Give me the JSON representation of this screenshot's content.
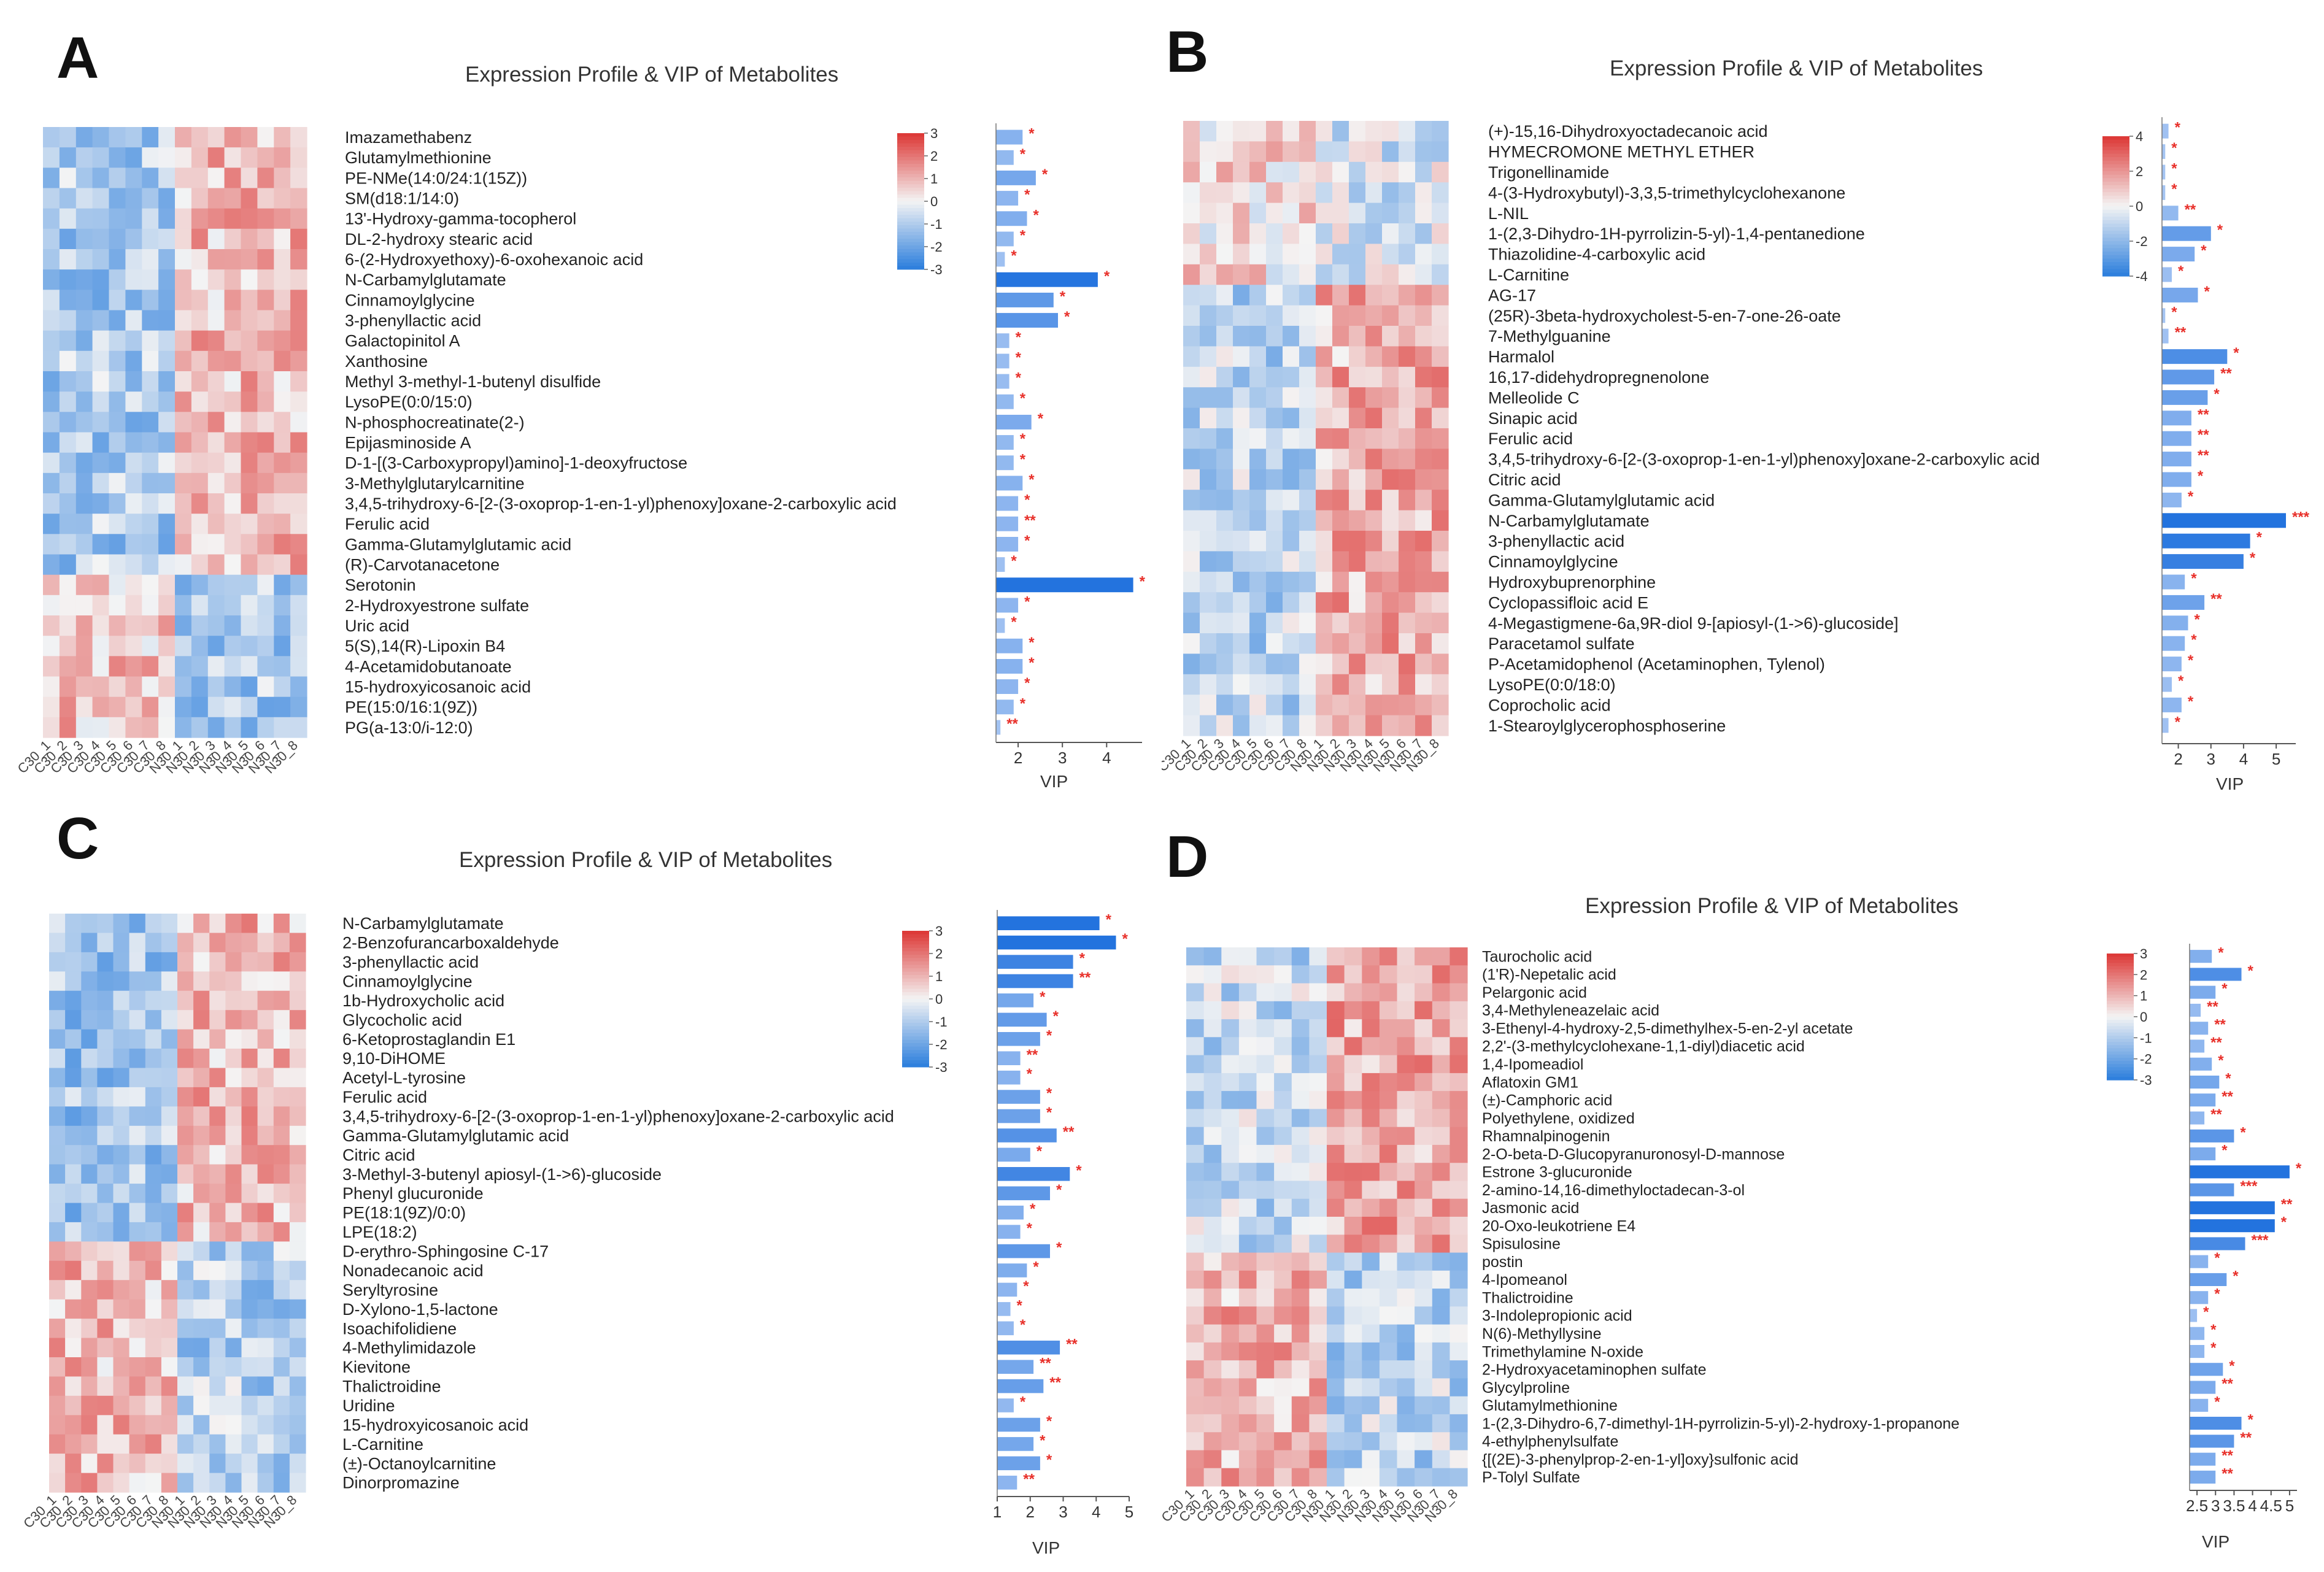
{
  "colors": {
    "low": "#2f80dd",
    "mid": "#f4f4f4",
    "high": "#dd3a38",
    "bar_light": "#a9c7f3",
    "bar_dark": "#2373de",
    "star": "#e8302a"
  },
  "chart_data": [
    {
      "type": "heatmap",
      "panel_label": "A",
      "title": "Expression Profile & VIP of Metabolites",
      "samples": [
        "C30_1",
        "C30_2",
        "C30_3",
        "C30_4",
        "C30_5",
        "C30_6",
        "C30_7",
        "C30_8",
        "N30_1",
        "N30_2",
        "N30_3",
        "N30_4",
        "N30_5",
        "N30_6",
        "N30_7",
        "N30_8"
      ],
      "colorbar_ticks": [
        "3",
        "2",
        "1",
        "0",
        "-1",
        "-2",
        "-3"
      ],
      "colorbar_range": [
        -3,
        3
      ],
      "vip_xlabel": "VIP",
      "vip_ticks": [
        "2",
        "3",
        "4"
      ],
      "vip_range": [
        1.5,
        4.8
      ],
      "metabolites": [
        {
          "name": "Imazamethabenz",
          "vip": 2.1,
          "sig": "*"
        },
        {
          "name": "Glutamylmethionine",
          "vip": 1.9,
          "sig": "*"
        },
        {
          "name": "PE-NMe(14:0/24:1(15Z))",
          "vip": 2.4,
          "sig": "*"
        },
        {
          "name": "SM(d18:1/14:0)",
          "vip": 2.0,
          "sig": "*"
        },
        {
          "name": "13'-Hydroxy-gamma-tocopherol",
          "vip": 2.2,
          "sig": "*"
        },
        {
          "name": "DL-2-hydroxy stearic acid",
          "vip": 1.9,
          "sig": "*"
        },
        {
          "name": "6-(2-Hydroxyethoxy)-6-oxohexanoic acid",
          "vip": 1.7,
          "sig": "*"
        },
        {
          "name": "N-Carbamylglutamate",
          "vip": 3.8,
          "sig": "*"
        },
        {
          "name": "Cinnamoylglycine",
          "vip": 2.8,
          "sig": "*"
        },
        {
          "name": "3-phenyllactic acid",
          "vip": 2.9,
          "sig": "*"
        },
        {
          "name": "Galactopinitol A",
          "vip": 1.8,
          "sig": "*"
        },
        {
          "name": "Xanthosine",
          "vip": 1.8,
          "sig": "*"
        },
        {
          "name": "Methyl 3-methyl-1-butenyl disulfide",
          "vip": 1.8,
          "sig": "*"
        },
        {
          "name": "LysoPE(0:0/15:0)",
          "vip": 1.9,
          "sig": "*"
        },
        {
          "name": "N-phosphocreatinate(2-)",
          "vip": 2.3,
          "sig": "*"
        },
        {
          "name": "Epijasminoside A",
          "vip": 1.9,
          "sig": "*"
        },
        {
          "name": "D-1-[(3-Carboxypropyl)amino]-1-deoxyfructose",
          "vip": 1.9,
          "sig": "*"
        },
        {
          "name": "3-Methylglutarylcarnitine",
          "vip": 2.1,
          "sig": "*"
        },
        {
          "name": "3,4,5-trihydroxy-6-[2-(3-oxoprop-1-en-1-yl)phenoxy]oxane-2-carboxylic acid",
          "vip": 2.0,
          "sig": "*"
        },
        {
          "name": "Ferulic acid",
          "vip": 2.0,
          "sig": "**"
        },
        {
          "name": "Gamma-Glutamylglutamic acid",
          "vip": 2.0,
          "sig": "*"
        },
        {
          "name": "(R)-Carvotanacetone",
          "vip": 1.7,
          "sig": "*"
        },
        {
          "name": "Serotonin",
          "vip": 4.6,
          "sig": "*"
        },
        {
          "name": "2-Hydroxyestrone sulfate",
          "vip": 2.0,
          "sig": "*"
        },
        {
          "name": "Uric acid",
          "vip": 1.7,
          "sig": "*"
        },
        {
          "name": "5(S),14(R)-Lipoxin B4",
          "vip": 2.1,
          "sig": "*"
        },
        {
          "name": "4-Acetamidobutanoate",
          "vip": 2.1,
          "sig": "*"
        },
        {
          "name": "15-hydroxyicosanoic acid",
          "vip": 2.0,
          "sig": "*"
        },
        {
          "name": "PE(15:0/16:1(9Z))",
          "vip": 1.9,
          "sig": "*"
        },
        {
          "name": "PG(a-13:0/i-12:0)",
          "vip": 1.6,
          "sig": "**"
        }
      ]
    },
    {
      "type": "heatmap",
      "panel_label": "B",
      "title": "Expression Profile & VIP of Metabolites",
      "samples": [
        "C30_1",
        "C30_2",
        "C30_3",
        "C30_4",
        "C30_5",
        "C30_6",
        "C30_7",
        "C30_8",
        "N30_1",
        "N30_2",
        "N30_3",
        "N30_4",
        "N30_5",
        "N30_6",
        "N30_7",
        "N30_8"
      ],
      "colorbar_ticks": [
        "4",
        "2",
        "0",
        "-2",
        "-4"
      ],
      "colorbar_range": [
        -4,
        4
      ],
      "vip_xlabel": "VIP",
      "vip_ticks": [
        "2",
        "3",
        "4",
        "5"
      ],
      "vip_range": [
        1.5,
        5.6
      ],
      "metabolites": [
        {
          "name": "(+)-15,16-Dihydroxyoctadecanoic acid",
          "vip": 1.7,
          "sig": "*"
        },
        {
          "name": "HYMECROMONE METHYL ETHER",
          "vip": 1.6,
          "sig": "*"
        },
        {
          "name": "Trigonellinamide",
          "vip": 1.6,
          "sig": "*"
        },
        {
          "name": "4-(3-Hydroxybutyl)-3,3,5-trimethylcyclohexanone",
          "vip": 1.6,
          "sig": "*"
        },
        {
          "name": "L-NIL",
          "vip": 2.0,
          "sig": "**"
        },
        {
          "name": "1-(2,3-Dihydro-1H-pyrrolizin-5-yl)-1,4-pentanedione",
          "vip": 3.0,
          "sig": "*"
        },
        {
          "name": "Thiazolidine-4-carboxylic acid",
          "vip": 2.5,
          "sig": "*"
        },
        {
          "name": "L-Carnitine",
          "vip": 1.8,
          "sig": "*"
        },
        {
          "name": "AG-17",
          "vip": 2.6,
          "sig": "*"
        },
        {
          "name": "(25R)-3beta-hydroxycholest-5-en-7-one-26-oate",
          "vip": 1.6,
          "sig": "*"
        },
        {
          "name": "7-Methylguanine",
          "vip": 1.7,
          "sig": "**"
        },
        {
          "name": "Harmalol",
          "vip": 3.5,
          "sig": "*"
        },
        {
          "name": "16,17-didehydropregnenolone",
          "vip": 3.1,
          "sig": "**"
        },
        {
          "name": "Melleolide C",
          "vip": 2.9,
          "sig": "*"
        },
        {
          "name": "Sinapic acid",
          "vip": 2.4,
          "sig": "**"
        },
        {
          "name": "Ferulic acid",
          "vip": 2.4,
          "sig": "**"
        },
        {
          "name": "3,4,5-trihydroxy-6-[2-(3-oxoprop-1-en-1-yl)phenoxy]oxane-2-carboxylic acid",
          "vip": 2.4,
          "sig": "**"
        },
        {
          "name": "Citric acid",
          "vip": 2.4,
          "sig": "*"
        },
        {
          "name": "Gamma-Glutamylglutamic acid",
          "vip": 2.1,
          "sig": "*"
        },
        {
          "name": "N-Carbamylglutamate",
          "vip": 5.3,
          "sig": "***"
        },
        {
          "name": "3-phenyllactic acid",
          "vip": 4.2,
          "sig": "*"
        },
        {
          "name": "Cinnamoylglycine",
          "vip": 4.0,
          "sig": "*"
        },
        {
          "name": "Hydroxybuprenorphine",
          "vip": 2.2,
          "sig": "*"
        },
        {
          "name": "Cyclopassifloic acid E",
          "vip": 2.8,
          "sig": "**"
        },
        {
          "name": "4-Megastigmene-6a,9R-diol 9-[apiosyl-(1->6)-glucoside]",
          "vip": 2.3,
          "sig": "*"
        },
        {
          "name": "Paracetamol sulfate",
          "vip": 2.2,
          "sig": "*"
        },
        {
          "name": "P-Acetamidophenol (Acetaminophen, Tylenol)",
          "vip": 2.1,
          "sig": "*"
        },
        {
          "name": "LysoPE(0:0/18:0)",
          "vip": 1.8,
          "sig": "*"
        },
        {
          "name": "Coprocholic acid",
          "vip": 2.1,
          "sig": "*"
        },
        {
          "name": "1-Stearoylglycerophosphoserine",
          "vip": 1.7,
          "sig": "*"
        }
      ]
    },
    {
      "type": "heatmap",
      "panel_label": "C",
      "title": "Expression Profile & VIP of Metabolites",
      "samples": [
        "C30_1",
        "C30_2",
        "C30_3",
        "C30_4",
        "C30_5",
        "C30_6",
        "C30_7",
        "C30_8",
        "N30_1",
        "N30_2",
        "N30_3",
        "N30_4",
        "N30_5",
        "N30_6",
        "N30_7",
        "N30_8"
      ],
      "colorbar_ticks": [
        "3",
        "2",
        "1",
        "0",
        "-1",
        "-2",
        "-3"
      ],
      "colorbar_range": [
        -3,
        3
      ],
      "vip_xlabel": "VIP",
      "vip_ticks": [
        "1",
        "2",
        "3",
        "4",
        "5"
      ],
      "vip_range": [
        1,
        5
      ],
      "metabolites": [
        {
          "name": "N-Carbamylglutamate",
          "vip": 4.1,
          "sig": "*"
        },
        {
          "name": "2-Benzofurancarboxaldehyde",
          "vip": 4.6,
          "sig": "*"
        },
        {
          "name": "3-phenyllactic acid",
          "vip": 3.3,
          "sig": "*"
        },
        {
          "name": "Cinnamoylglycine",
          "vip": 3.3,
          "sig": "**"
        },
        {
          "name": "1b-Hydroxycholic acid",
          "vip": 2.1,
          "sig": "*"
        },
        {
          "name": "Glycocholic acid",
          "vip": 2.5,
          "sig": "*"
        },
        {
          "name": "6-Ketoprostaglandin E1",
          "vip": 2.3,
          "sig": "*"
        },
        {
          "name": "9,10-DiHOME",
          "vip": 1.7,
          "sig": "**"
        },
        {
          "name": "Acetyl-L-tyrosine",
          "vip": 1.7,
          "sig": "*"
        },
        {
          "name": "Ferulic acid",
          "vip": 2.3,
          "sig": "*"
        },
        {
          "name": "3,4,5-trihydroxy-6-[2-(3-oxoprop-1-en-1-yl)phenoxy]oxane-2-carboxylic acid",
          "vip": 2.3,
          "sig": "*"
        },
        {
          "name": "Gamma-Glutamylglutamic acid",
          "vip": 2.8,
          "sig": "**"
        },
        {
          "name": "Citric acid",
          "vip": 2.0,
          "sig": "*"
        },
        {
          "name": "3-Methyl-3-butenyl apiosyl-(1->6)-glucoside",
          "vip": 3.2,
          "sig": "*"
        },
        {
          "name": "Phenyl glucuronide",
          "vip": 2.6,
          "sig": "*"
        },
        {
          "name": "PE(18:1(9Z)/0:0)",
          "vip": 1.8,
          "sig": "*"
        },
        {
          "name": "LPE(18:2)",
          "vip": 1.7,
          "sig": "*"
        },
        {
          "name": "D-erythro-Sphingosine C-17",
          "vip": 2.6,
          "sig": "*"
        },
        {
          "name": "Nonadecanoic acid",
          "vip": 1.9,
          "sig": "*"
        },
        {
          "name": "Seryltyrosine",
          "vip": 1.6,
          "sig": "*"
        },
        {
          "name": "D-Xylono-1,5-lactone",
          "vip": 1.4,
          "sig": "*"
        },
        {
          "name": "Isoachifolidiene",
          "vip": 1.5,
          "sig": "*"
        },
        {
          "name": "4-Methylimidazole",
          "vip": 2.9,
          "sig": "**"
        },
        {
          "name": "Kievitone",
          "vip": 2.1,
          "sig": "**"
        },
        {
          "name": "Thalictroidine",
          "vip": 2.4,
          "sig": "**"
        },
        {
          "name": "Uridine",
          "vip": 1.5,
          "sig": "*"
        },
        {
          "name": "15-hydroxyicosanoic acid",
          "vip": 2.3,
          "sig": "*"
        },
        {
          "name": "L-Carnitine",
          "vip": 2.1,
          "sig": "*"
        },
        {
          "name": "(±)-Octanoylcarnitine",
          "vip": 2.3,
          "sig": "*"
        },
        {
          "name": "Dinorpromazine",
          "vip": 1.6,
          "sig": "**"
        }
      ]
    },
    {
      "type": "heatmap",
      "panel_label": "D",
      "title": "Expression Profile & VIP of Metabolites",
      "samples": [
        "C30_1",
        "C30_2",
        "C30_3",
        "C30_4",
        "C30_5",
        "C30_6",
        "C30_7",
        "C30_8",
        "N30_1",
        "N30_2",
        "N30_3",
        "N30_4",
        "N30_5",
        "N30_6",
        "N30_7",
        "N30_8"
      ],
      "colorbar_ticks": [
        "3",
        "2",
        "1",
        "0",
        "-1",
        "-2",
        "-3"
      ],
      "colorbar_range": [
        -3,
        3
      ],
      "vip_xlabel": "VIP",
      "vip_ticks": [
        "2.5",
        "3",
        "3.5",
        "4",
        "4.5",
        "5"
      ],
      "vip_range": [
        2.3,
        5.2
      ],
      "metabolites": [
        {
          "name": "Taurocholic acid",
          "vip": 2.9,
          "sig": "*"
        },
        {
          "name": "(1'R)-Nepetalic acid",
          "vip": 3.7,
          "sig": "*"
        },
        {
          "name": "Pelargonic acid",
          "vip": 3.0,
          "sig": "*"
        },
        {
          "name": "3,4-Methyleneazelaic acid",
          "vip": 2.6,
          "sig": "**"
        },
        {
          "name": "3-Ethenyl-4-hydroxy-2,5-dimethylhex-5-en-2-yl acetate",
          "vip": 2.8,
          "sig": "**"
        },
        {
          "name": "2,2'-(3-methylcyclohexane-1,1-diyl)diacetic acid",
          "vip": 2.7,
          "sig": "**"
        },
        {
          "name": "1,4-Ipomeadiol",
          "vip": 2.9,
          "sig": "*"
        },
        {
          "name": "Aflatoxin GM1",
          "vip": 3.1,
          "sig": "*"
        },
        {
          "name": "(±)-Camphoric acid",
          "vip": 3.0,
          "sig": "**"
        },
        {
          "name": "Polyethylene, oxidized",
          "vip": 2.7,
          "sig": "**"
        },
        {
          "name": "Rhamnalpinogenin",
          "vip": 3.5,
          "sig": "*"
        },
        {
          "name": "2-O-beta-D-Glucopyranuronosyl-D-mannose",
          "vip": 3.0,
          "sig": "*"
        },
        {
          "name": "Estrone 3-glucuronide",
          "vip": 5.0,
          "sig": "*"
        },
        {
          "name": "2-amino-14,16-dimethyloctadecan-3-ol",
          "vip": 3.5,
          "sig": "***"
        },
        {
          "name": "Jasmonic acid",
          "vip": 4.6,
          "sig": "**"
        },
        {
          "name": "20-Oxo-leukotriene E4",
          "vip": 4.6,
          "sig": "*"
        },
        {
          "name": "Spisulosine",
          "vip": 3.8,
          "sig": "***"
        },
        {
          "name": "postin",
          "vip": 2.8,
          "sig": "*"
        },
        {
          "name": "4-Ipomeanol",
          "vip": 3.3,
          "sig": "*"
        },
        {
          "name": "Thalictroidine",
          "vip": 2.8,
          "sig": "*"
        },
        {
          "name": "3-Indolepropionic acid",
          "vip": 2.5,
          "sig": "*"
        },
        {
          "name": "N(6)-Methyllysine",
          "vip": 2.7,
          "sig": "*"
        },
        {
          "name": "Trimethylamine N-oxide",
          "vip": 2.7,
          "sig": "*"
        },
        {
          "name": "2-Hydroxyacetaminophen sulfate",
          "vip": 3.2,
          "sig": "*"
        },
        {
          "name": "Glycylproline",
          "vip": 3.0,
          "sig": "**"
        },
        {
          "name": "Glutamylmethionine",
          "vip": 2.8,
          "sig": "*"
        },
        {
          "name": "1-(2,3-Dihydro-6,7-dimethyl-1H-pyrrolizin-5-yl)-2-hydroxy-1-propanone",
          "vip": 3.7,
          "sig": "*"
        },
        {
          "name": "4-ethylphenylsulfate",
          "vip": 3.5,
          "sig": "**"
        },
        {
          "name": "{[(2E)-3-phenylprop-2-en-1-yl]oxy}sulfonic acid",
          "vip": 3.0,
          "sig": "**"
        },
        {
          "name": "P-Tolyl Sulfate",
          "vip": 3.0,
          "sig": "**"
        }
      ]
    }
  ]
}
